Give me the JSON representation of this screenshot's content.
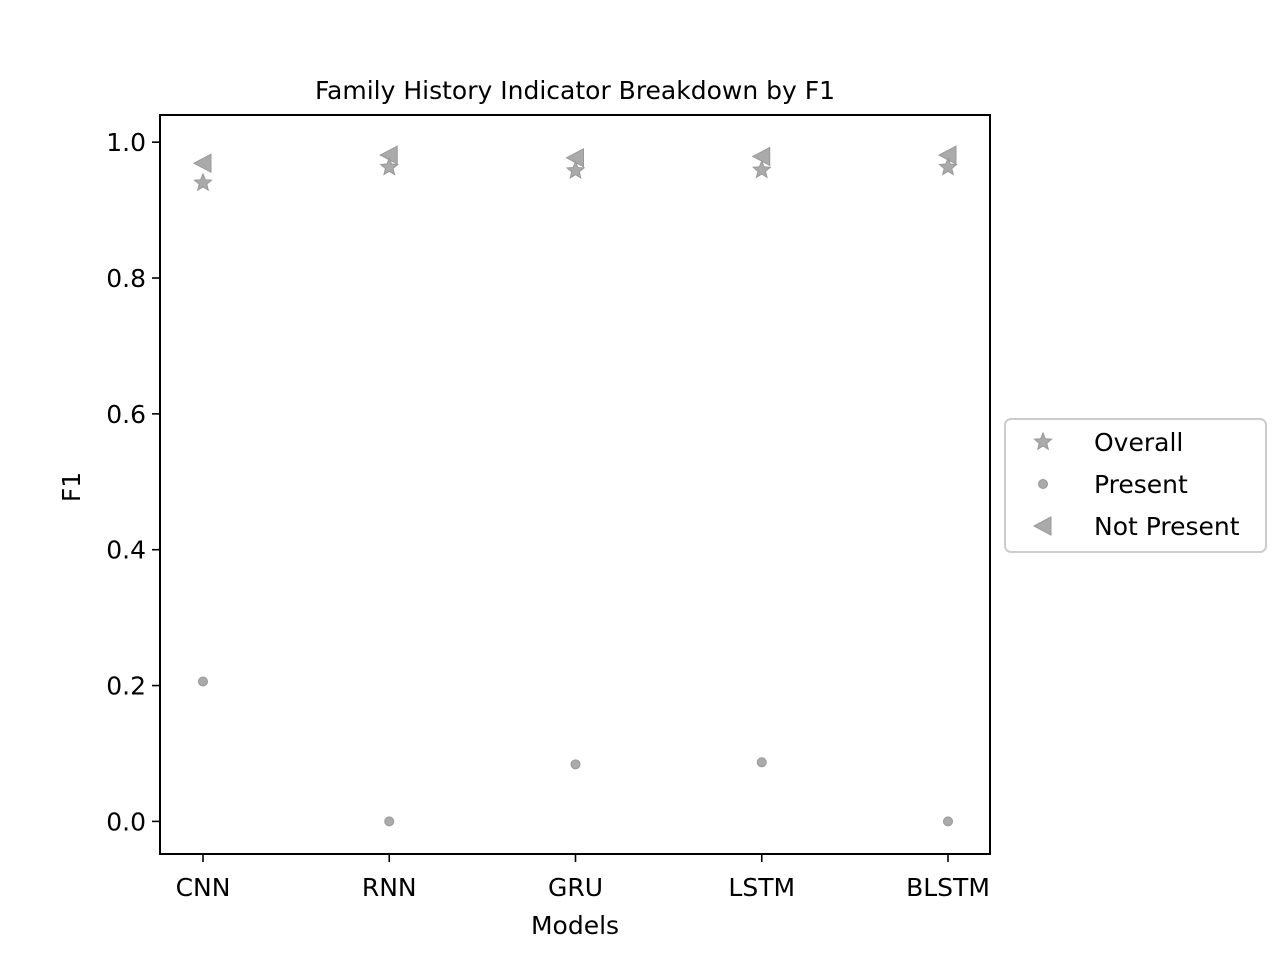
{
  "chart_data": {
    "type": "scatter",
    "title": "Family History Indicator Breakdown by F1",
    "xlabel": "Models",
    "ylabel": "F1",
    "categories": [
      "CNN",
      "RNN",
      "GRU",
      "LSTM",
      "BLSTM"
    ],
    "ylim": [
      -0.048,
      1.04
    ],
    "yticks": [
      0.0,
      0.2,
      0.4,
      0.6,
      0.8,
      1.0
    ],
    "ytick_labels": [
      "0.0",
      "0.2",
      "0.4",
      "0.6",
      "0.8",
      "1.0"
    ],
    "grid": false,
    "legend_position": "outside-right",
    "series": [
      {
        "name": "Overall",
        "marker": "star",
        "color": "#aaaaaa",
        "values": [
          0.94,
          0.963,
          0.958,
          0.959,
          0.963
        ]
      },
      {
        "name": "Present",
        "marker": "circle",
        "color": "#aaaaaa",
        "values": [
          0.206,
          0.0,
          0.084,
          0.087,
          0.0
        ]
      },
      {
        "name": "Not Present",
        "marker": "triangle-left",
        "color": "#aaaaaa",
        "values": [
          0.969,
          0.981,
          0.977,
          0.979,
          0.981
        ]
      }
    ]
  }
}
